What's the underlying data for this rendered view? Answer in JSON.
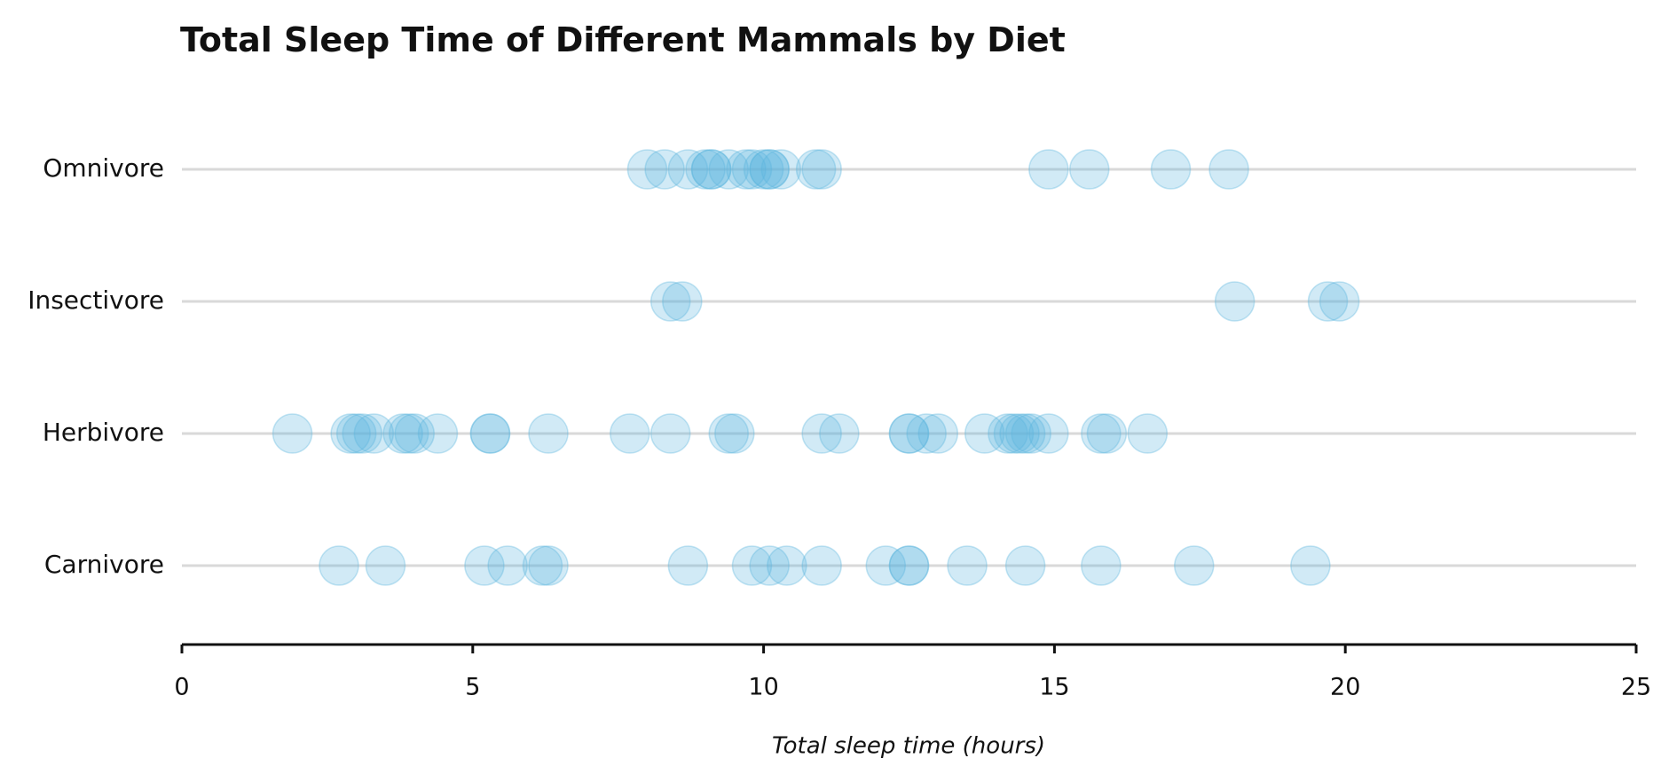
{
  "chart_data": {
    "type": "strip",
    "title": "Total Sleep Time of Different Mammals by Diet",
    "x_label": "Total sleep time (hours)",
    "categories": [
      "Carnivore",
      "Herbivore",
      "Insectivore",
      "Omnivore"
    ],
    "values": [
      [
        2.7,
        3.5,
        5.2,
        5.6,
        6.2,
        6.3,
        8.7,
        9.8,
        10.1,
        10.4,
        11.0,
        12.1,
        12.5,
        12.5,
        13.5,
        14.5,
        15.8,
        17.4,
        19.4
      ],
      [
        1.9,
        2.9,
        3.0,
        3.1,
        3.3,
        3.8,
        3.9,
        4.0,
        4.4,
        5.3,
        5.3,
        6.3,
        7.7,
        8.4,
        9.4,
        9.5,
        11.0,
        11.3,
        12.5,
        12.5,
        12.8,
        13.0,
        13.8,
        14.2,
        14.3,
        14.4,
        14.5,
        14.6,
        14.9,
        15.8,
        15.9,
        16.6
      ],
      [
        8.4,
        8.6,
        18.1,
        19.7,
        19.9
      ],
      [
        8.0,
        8.3,
        8.7,
        9.0,
        9.1,
        9.1,
        9.4,
        9.7,
        9.8,
        10.0,
        10.1,
        10.1,
        10.3,
        10.9,
        11.0,
        14.9,
        15.6,
        17.0,
        18.0
      ]
    ],
    "color": "#5ab4de",
    "xlim": [
      0,
      25
    ],
    "xticks": [
      0,
      5,
      10,
      15,
      20,
      25
    ]
  }
}
